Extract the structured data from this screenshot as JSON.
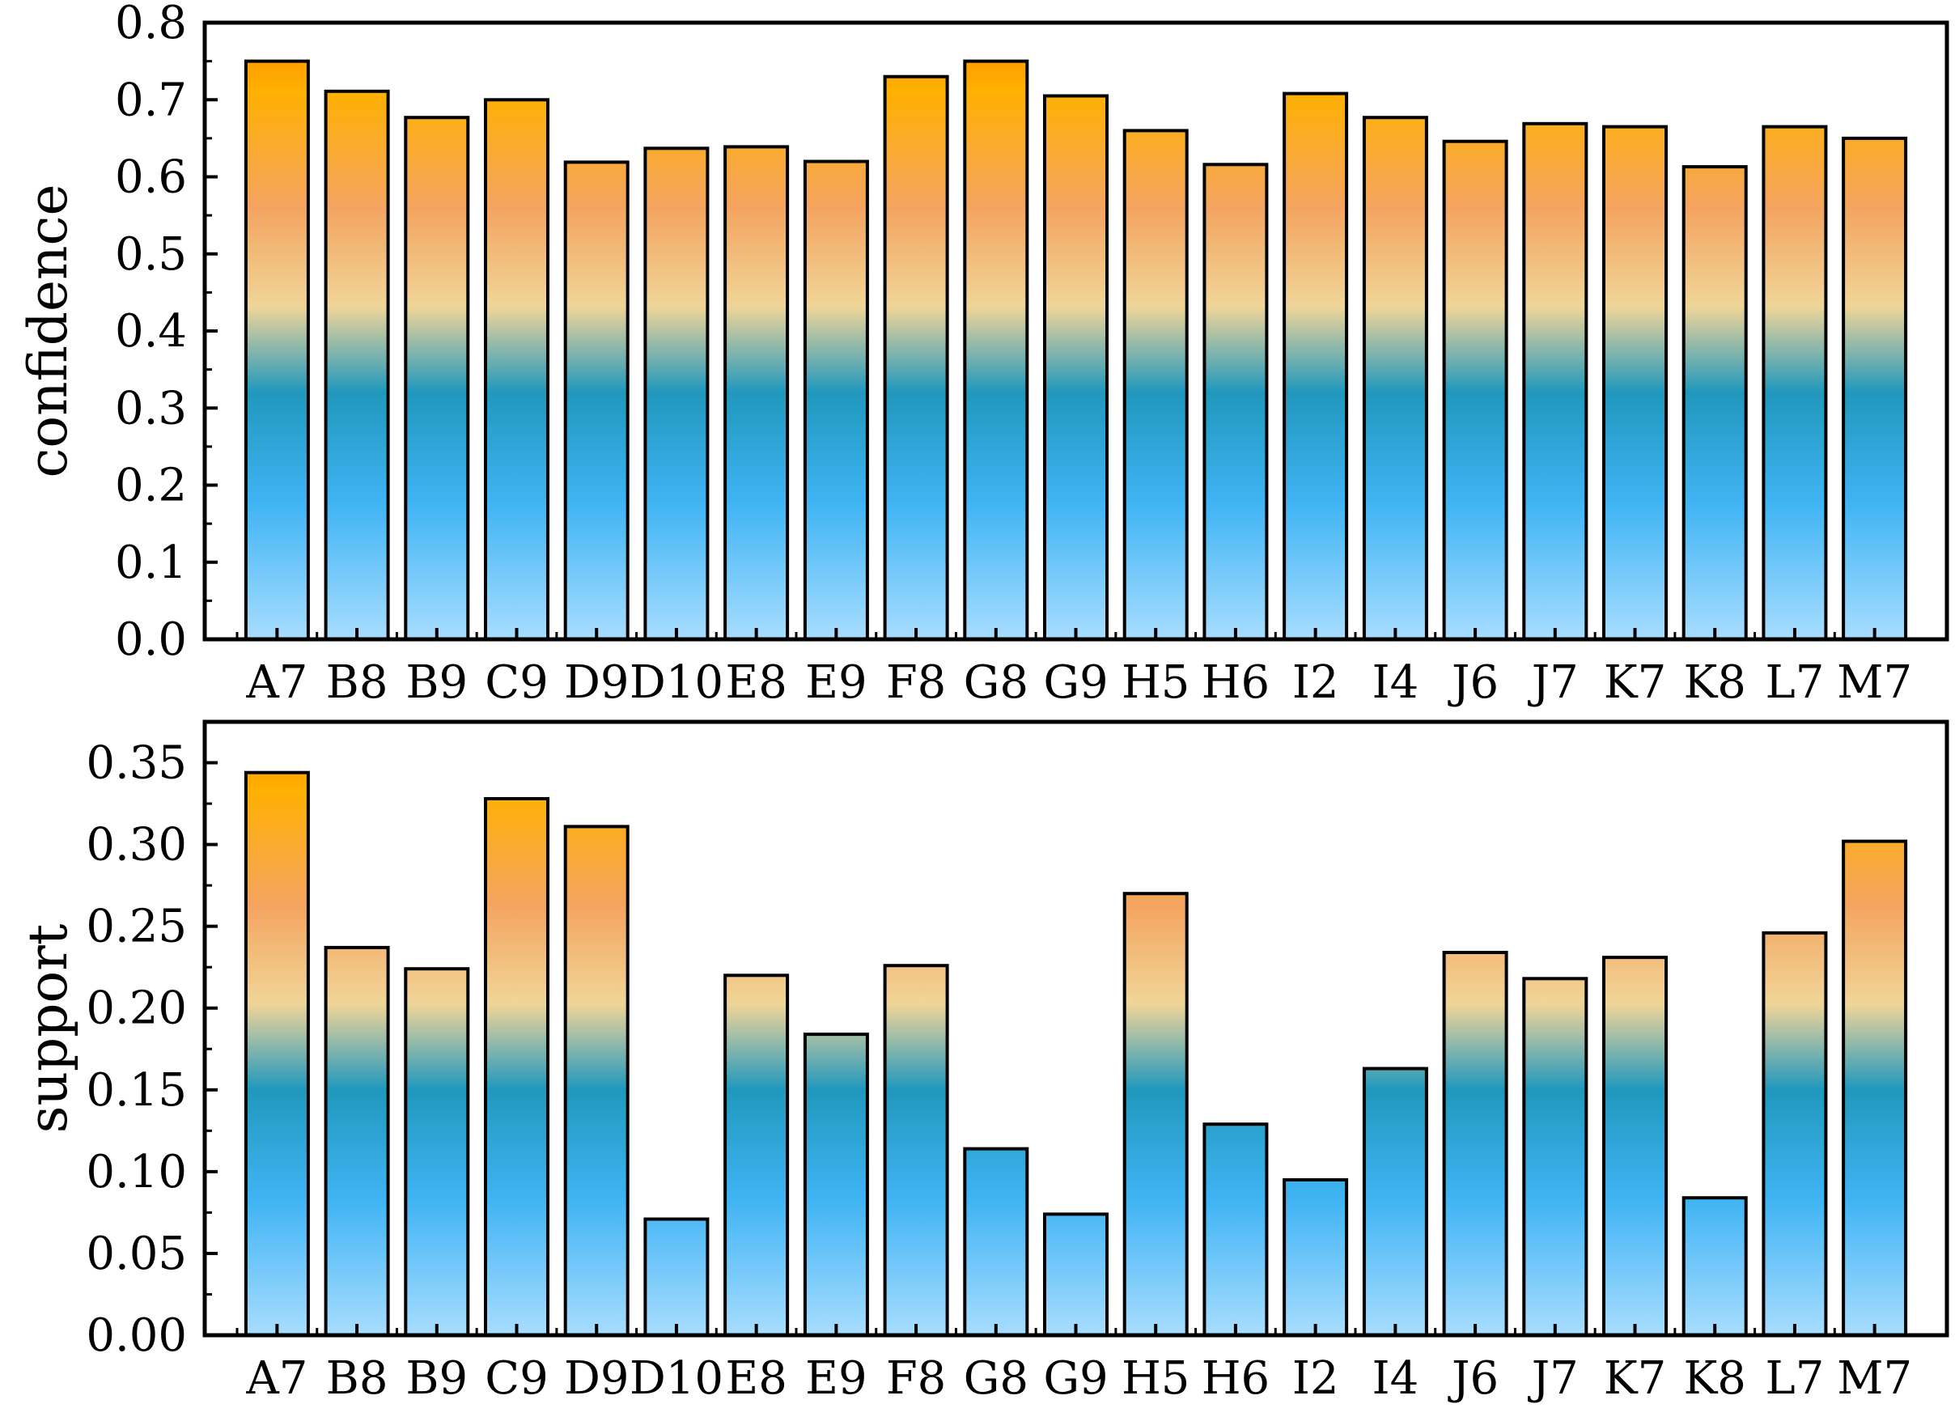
{
  "chart_data": [
    {
      "type": "bar",
      "title": "",
      "xlabel": "",
      "ylabel": "confidence",
      "ylim": [
        0,
        0.8
      ],
      "yticks": [
        "0.0",
        "0.1",
        "0.2",
        "0.3",
        "0.4",
        "0.5",
        "0.6",
        "0.7",
        "0.8"
      ],
      "categories": [
        "A7",
        "B8",
        "B9",
        "C9",
        "D9",
        "D10",
        "E8",
        "E9",
        "F8",
        "G8",
        "G9",
        "H5",
        "H6",
        "I2",
        "I4",
        "J6",
        "J7",
        "K7",
        "K8",
        "L7",
        "M7"
      ],
      "values": [
        0.75,
        0.711,
        0.677,
        0.7,
        0.619,
        0.637,
        0.639,
        0.62,
        0.73,
        0.75,
        0.705,
        0.66,
        0.616,
        0.708,
        0.677,
        0.646,
        0.669,
        0.665,
        0.613,
        0.665,
        0.65
      ],
      "grid": false,
      "legend": "none"
    },
    {
      "type": "bar",
      "title": "",
      "xlabel": "",
      "ylabel": "support",
      "ylim": [
        0,
        0.375
      ],
      "yticks": [
        "0.00",
        "0.05",
        "0.10",
        "0.15",
        "0.20",
        "0.25",
        "0.30",
        "0.35"
      ],
      "categories": [
        "A7",
        "B8",
        "B9",
        "C9",
        "D9",
        "D10",
        "E8",
        "E9",
        "F8",
        "G8",
        "G9",
        "H5",
        "H6",
        "I2",
        "I4",
        "J6",
        "J7",
        "K7",
        "K8",
        "L7",
        "M7"
      ],
      "values": [
        0.344,
        0.237,
        0.224,
        0.328,
        0.311,
        0.071,
        0.22,
        0.184,
        0.226,
        0.114,
        0.074,
        0.27,
        0.129,
        0.095,
        0.163,
        0.234,
        0.218,
        0.231,
        0.084,
        0.246,
        0.302
      ],
      "grid": false,
      "legend": "none"
    }
  ],
  "colors": {
    "bar_stops": [
      "#ff8800",
      "#ffb000",
      "#f4a460",
      "#f0d598",
      "#2098bd",
      "#40b4f4",
      "#a8ddff"
    ],
    "bar_outline": "#000000",
    "axis": "#000000"
  }
}
